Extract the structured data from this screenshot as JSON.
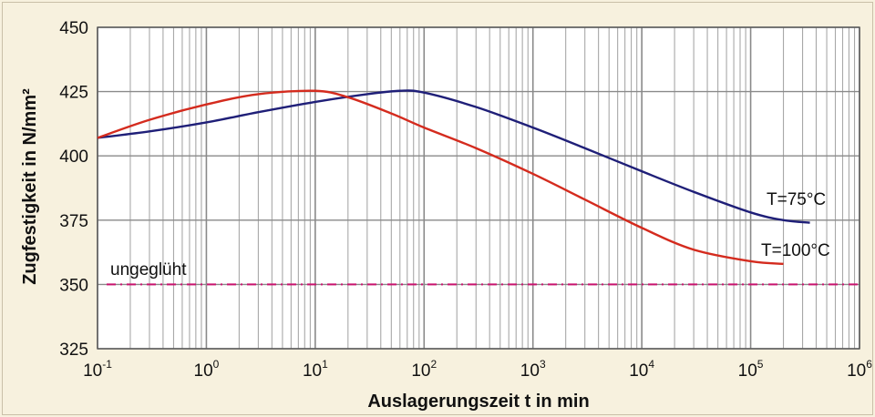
{
  "chart_data": {
    "type": "line",
    "xlabel": "Auslagerungszeit t in min",
    "ylabel": "Zugfestigkeit in N/mm²",
    "x_scale": "log",
    "xlim": [
      0.1,
      1000000
    ],
    "ylim": [
      325,
      450
    ],
    "x_tick_labels": [
      {
        "base": "10",
        "exp": "-1",
        "value": 0.1
      },
      {
        "base": "10",
        "exp": "0",
        "value": 1
      },
      {
        "base": "10",
        "exp": "1",
        "value": 10
      },
      {
        "base": "10",
        "exp": "2",
        "value": 100
      },
      {
        "base": "10",
        "exp": "3",
        "value": 1000
      },
      {
        "base": "10",
        "exp": "4",
        "value": 10000
      },
      {
        "base": "10",
        "exp": "5",
        "value": 100000
      },
      {
        "base": "10",
        "exp": "6",
        "value": 1000000
      }
    ],
    "y_ticks": [
      325,
      350,
      375,
      400,
      425,
      450
    ],
    "grid": true,
    "series": [
      {
        "name": "T=75°C",
        "color": "#1f1f78",
        "x": [
          0.1,
          0.3,
          1,
          3,
          10,
          30,
          60,
          100,
          300,
          1000,
          3000,
          10000,
          30000,
          100000,
          200000,
          350000
        ],
        "y": [
          407,
          409.5,
          413,
          417,
          421,
          424,
          425.3,
          424.6,
          419,
          411,
          403,
          394,
          386,
          378,
          375,
          374
        ]
      },
      {
        "name": "T=100°C",
        "color": "#d42b1e",
        "x": [
          0.1,
          0.3,
          1,
          3,
          10,
          20,
          50,
          100,
          300,
          1000,
          3000,
          10000,
          30000,
          100000,
          200000
        ],
        "y": [
          407,
          414,
          420,
          424,
          425.3,
          422.8,
          416.5,
          411,
          403,
          393,
          383,
          372,
          363.5,
          359,
          358
        ]
      }
    ],
    "reference_line": {
      "label": "ungeglüht",
      "y": 350,
      "color": "#c8136e",
      "style": "dash-dot"
    }
  }
}
